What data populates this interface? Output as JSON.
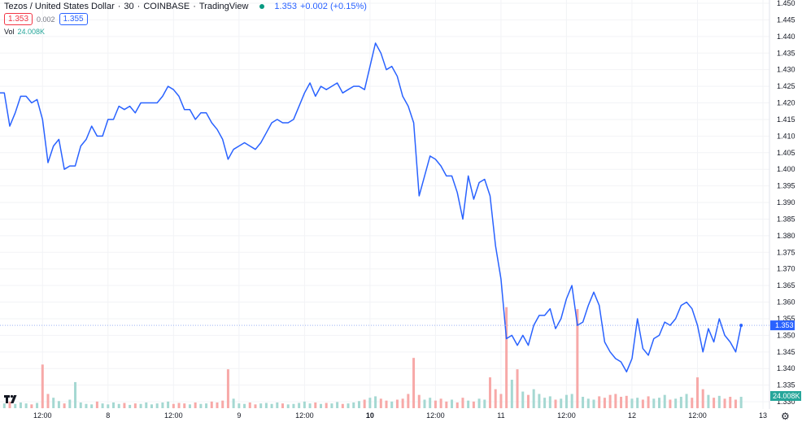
{
  "header": {
    "symbol": "Tezos / United States Dollar",
    "interval": "30",
    "exchange": "COINBASE",
    "source": "TradingView",
    "status_color": "#089981",
    "last": "1.353",
    "change": "+0.002 (+0.15%)",
    "bid": "1.353",
    "spread": "0.002",
    "ask": "1.355",
    "vol_label": "Vol",
    "vol_value": "24.008K"
  },
  "colors": {
    "line": "#2962ff",
    "up_volume": "#a5d8d2",
    "down_volume": "#f7a9a8",
    "last_price_badge": "#2962ff",
    "volume_badge": "#26a69a"
  },
  "chart_data": {
    "type": "line",
    "interval_hours": 1,
    "start": "7 04:00",
    "ylim": [
      1.328,
      1.451
    ],
    "y_ticks": [
      "1.450",
      "1.445",
      "1.440",
      "1.435",
      "1.430",
      "1.425",
      "1.420",
      "1.415",
      "1.410",
      "1.405",
      "1.400",
      "1.395",
      "1.390",
      "1.385",
      "1.380",
      "1.375",
      "1.370",
      "1.365",
      "1.360",
      "1.355",
      "1.350",
      "1.345",
      "1.340",
      "1.335",
      "1.330"
    ],
    "x_ticks": [
      {
        "label": "12:00",
        "t": "7 12:00"
      },
      {
        "label": "8",
        "t": "8 00:00"
      },
      {
        "label": "12:00",
        "t": "8 12:00"
      },
      {
        "label": "9",
        "t": "9 00:00"
      },
      {
        "label": "12:00",
        "t": "9 12:00"
      },
      {
        "label": "10",
        "t": "10 00:00",
        "bold": true
      },
      {
        "label": "12:00",
        "t": "10 12:00"
      },
      {
        "label": "11",
        "t": "11 00:00"
      },
      {
        "label": "12:00",
        "t": "11 12:00"
      },
      {
        "label": "12",
        "t": "12 00:00"
      },
      {
        "label": "12:00",
        "t": "12 12:00"
      },
      {
        "label": "13",
        "t": "13 00:00"
      }
    ],
    "last_price": "1.353",
    "last_volume": "24.008K",
    "grid": true,
    "values": [
      1.423,
      1.423,
      1.413,
      1.417,
      1.422,
      1.422,
      1.42,
      1.421,
      1.415,
      1.402,
      1.407,
      1.409,
      1.4,
      1.401,
      1.401,
      1.407,
      1.409,
      1.413,
      1.41,
      1.41,
      1.415,
      1.415,
      1.419,
      1.418,
      1.419,
      1.417,
      1.42,
      1.42,
      1.42,
      1.42,
      1.422,
      1.425,
      1.424,
      1.422,
      1.418,
      1.418,
      1.415,
      1.417,
      1.417,
      1.414,
      1.412,
      1.409,
      1.403,
      1.406,
      1.407,
      1.408,
      1.407,
      1.406,
      1.408,
      1.411,
      1.414,
      1.415,
      1.414,
      1.414,
      1.415,
      1.419,
      1.423,
      1.426,
      1.422,
      1.425,
      1.424,
      1.425,
      1.426,
      1.423,
      1.424,
      1.425,
      1.425,
      1.424,
      1.431,
      1.438,
      1.435,
      1.43,
      1.431,
      1.428,
      1.422,
      1.419,
      1.414,
      1.392,
      1.398,
      1.404,
      1.403,
      1.401,
      1.398,
      1.398,
      1.393,
      1.385,
      1.398,
      1.391,
      1.396,
      1.397,
      1.392,
      1.377,
      1.367,
      1.349,
      1.35,
      1.347,
      1.35,
      1.347,
      1.353,
      1.356,
      1.356,
      1.358,
      1.352,
      1.355,
      1.361,
      1.365,
      1.353,
      1.354,
      1.359,
      1.363,
      1.359,
      1.348,
      1.345,
      1.343,
      1.342,
      1.339,
      1.343,
      1.355,
      1.346,
      1.344,
      1.349,
      1.35,
      1.354,
      1.353,
      1.355,
      1.359,
      1.36,
      1.358,
      1.353,
      1.345,
      1.352,
      1.348,
      1.355,
      1.35,
      1.348,
      1.345,
      1.353
    ],
    "volume_k": [
      8,
      10,
      14,
      9,
      12,
      10,
      8,
      11,
      92,
      30,
      22,
      15,
      10,
      18,
      55,
      12,
      9,
      8,
      14,
      10,
      8,
      12,
      9,
      11,
      7,
      10,
      9,
      12,
      8,
      10,
      12,
      14,
      9,
      11,
      10,
      8,
      12,
      9,
      10,
      14,
      12,
      16,
      82,
      20,
      10,
      9,
      12,
      8,
      10,
      11,
      9,
      12,
      10,
      8,
      9,
      11,
      14,
      10,
      12,
      9,
      11,
      10,
      13,
      9,
      10,
      12,
      15,
      18,
      22,
      25,
      20,
      16,
      14,
      18,
      20,
      30,
      106,
      28,
      18,
      22,
      16,
      20,
      14,
      18,
      12,
      22,
      16,
      14,
      20,
      18,
      65,
      40,
      30,
      213,
      60,
      82,
      35,
      28,
      40,
      30,
      22,
      25,
      18,
      20,
      28,
      30,
      209,
      24,
      20,
      18,
      25,
      22,
      28,
      30,
      24,
      26,
      20,
      22,
      18,
      25,
      20,
      22,
      28,
      18,
      20,
      24,
      30,
      22,
      65,
      40,
      28,
      22,
      26,
      20,
      24,
      18,
      24
    ]
  }
}
